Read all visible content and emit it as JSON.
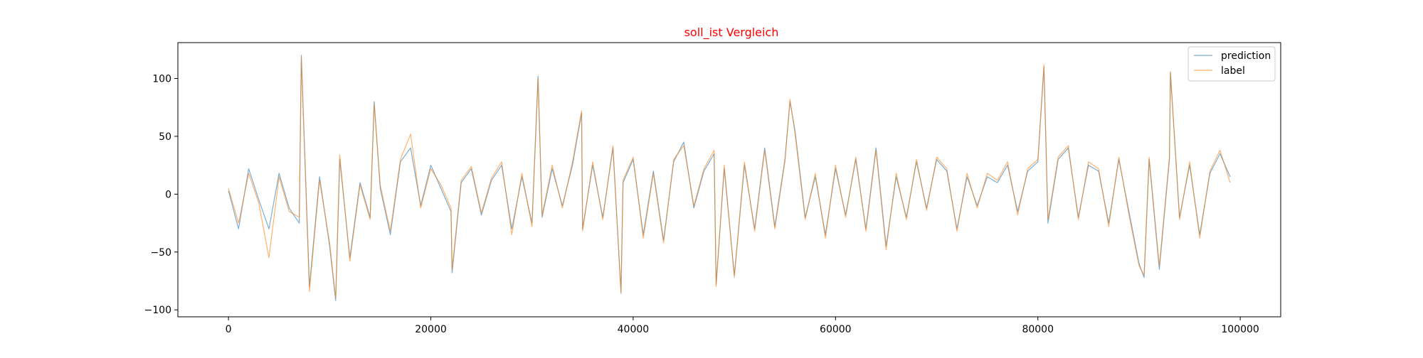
{
  "chart_data": {
    "type": "line",
    "title": "soll_ist Vergleich",
    "title_color": "#ff0000",
    "xlabel": "",
    "ylabel": "",
    "xlim": [
      -5000,
      104000
    ],
    "ylim": [
      -106,
      131
    ],
    "x_ticks": [
      0,
      20000,
      40000,
      60000,
      80000,
      100000
    ],
    "x_tick_labels": [
      "0",
      "20000",
      "40000",
      "60000",
      "80000",
      "100000"
    ],
    "y_ticks": [
      -100,
      -50,
      0,
      50,
      100
    ],
    "y_tick_labels": [
      "−100",
      "−50",
      "0",
      "50",
      "100"
    ],
    "grid": false,
    "legend_position": "top-right",
    "x": [
      0,
      1000,
      2000,
      3000,
      4000,
      5000,
      6000,
      7000,
      7200,
      8000,
      9000,
      10000,
      10600,
      11000,
      12000,
      13000,
      14000,
      14400,
      15000,
      16000,
      17000,
      18000,
      19000,
      20000,
      21000,
      22000,
      22100,
      23000,
      24000,
      25000,
      26000,
      27000,
      28000,
      29000,
      30000,
      30600,
      31000,
      32000,
      33000,
      34000,
      34900,
      35000,
      36000,
      37000,
      38000,
      38800,
      39000,
      40000,
      41000,
      42000,
      43000,
      44000,
      45000,
      46000,
      47000,
      48000,
      48200,
      49000,
      50000,
      51000,
      52000,
      53000,
      54000,
      55000,
      55500,
      56000,
      57000,
      58000,
      59000,
      60000,
      61000,
      62000,
      63000,
      64000,
      65000,
      66000,
      67000,
      68000,
      69000,
      70000,
      71000,
      72000,
      73000,
      74000,
      75000,
      76000,
      77000,
      78000,
      79000,
      80000,
      80600,
      81000,
      82000,
      83000,
      84000,
      85000,
      86000,
      87000,
      88000,
      89000,
      90000,
      90500,
      91000,
      92000,
      93000,
      93100,
      94000,
      95000,
      96000,
      97000,
      98000,
      99000
    ],
    "series": [
      {
        "name": "prediction",
        "color": "#1f77b4",
        "values": [
          3,
          -30,
          22,
          -5,
          -30,
          18,
          -12,
          -25,
          120,
          -80,
          15,
          -45,
          -92,
          30,
          -55,
          10,
          -20,
          80,
          5,
          -35,
          28,
          40,
          -10,
          25,
          5,
          -15,
          -68,
          10,
          22,
          -18,
          12,
          25,
          -30,
          15,
          -25,
          102,
          -20,
          22,
          -10,
          25,
          70,
          -30,
          25,
          -20,
          40,
          -85,
          10,
          30,
          -35,
          20,
          -40,
          28,
          45,
          -12,
          20,
          35,
          -78,
          22,
          -70,
          25,
          -30,
          40,
          -28,
          30,
          80,
          55,
          -20,
          15,
          -35,
          22,
          -18,
          30,
          -30,
          40,
          -45,
          15,
          -20,
          28,
          -12,
          30,
          20,
          -30,
          15,
          -10,
          15,
          10,
          25,
          -15,
          20,
          28,
          110,
          -25,
          30,
          40,
          -20,
          25,
          20,
          -25,
          30,
          -15,
          -60,
          -72,
          30,
          -65,
          30,
          105,
          -20,
          25,
          -35,
          18,
          35,
          15
        ]
      },
      {
        "name": "label",
        "color": "#ff7f0e",
        "values": [
          5,
          -25,
          18,
          -8,
          -55,
          15,
          -15,
          -20,
          118,
          -84,
          12,
          -42,
          -90,
          34,
          -58,
          8,
          -22,
          78,
          8,
          -32,
          30,
          52,
          -12,
          22,
          8,
          -12,
          -65,
          12,
          24,
          -16,
          14,
          28,
          -35,
          18,
          -28,
          100,
          -18,
          25,
          -12,
          28,
          72,
          -32,
          28,
          -22,
          42,
          -86,
          12,
          32,
          -38,
          18,
          -42,
          30,
          42,
          -10,
          22,
          38,
          -80,
          25,
          -72,
          28,
          -32,
          38,
          -30,
          28,
          82,
          52,
          -22,
          18,
          -38,
          25,
          -20,
          32,
          -32,
          38,
          -48,
          18,
          -22,
          30,
          -14,
          32,
          22,
          -32,
          18,
          -12,
          18,
          12,
          28,
          -18,
          22,
          30,
          112,
          -22,
          32,
          42,
          -22,
          28,
          22,
          -28,
          32,
          -18,
          -62,
          -70,
          32,
          -62,
          32,
          106,
          -22,
          28,
          -38,
          20,
          38,
          10
        ]
      }
    ]
  }
}
